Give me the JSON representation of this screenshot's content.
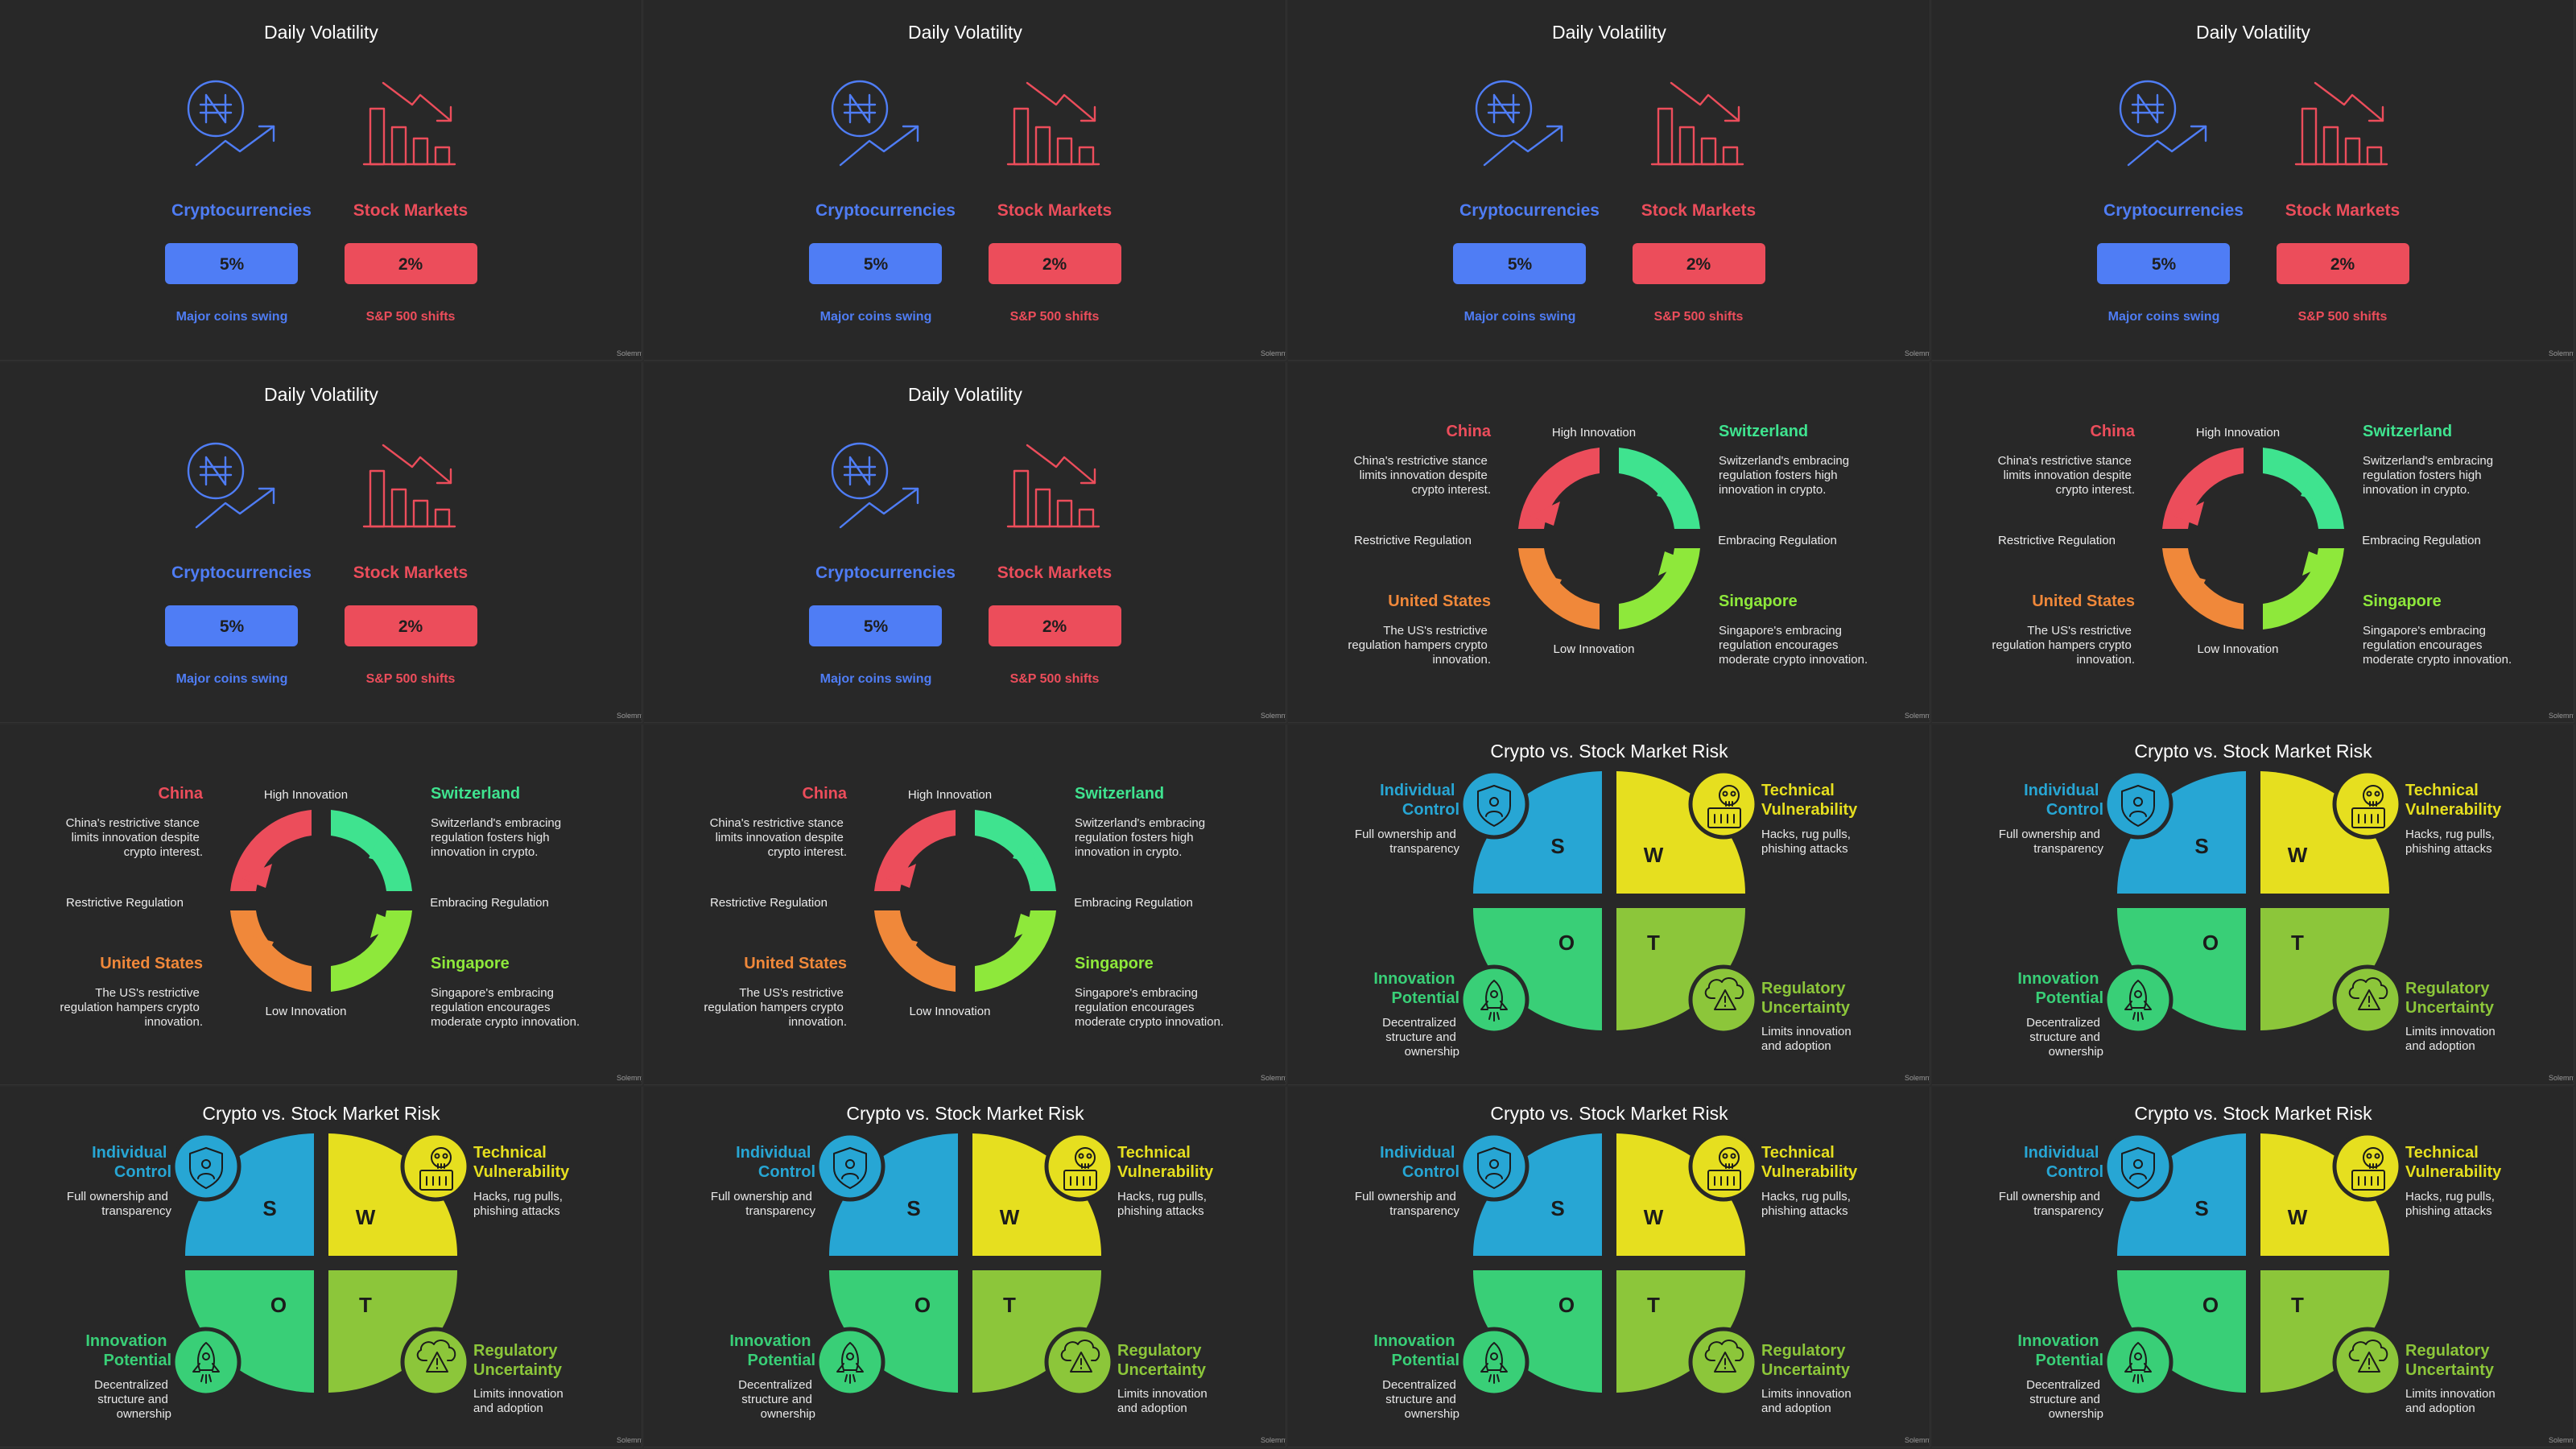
{
  "brand": "Solemny",
  "colors": {
    "background": "#282828",
    "crypto_blue": "#4f7df5",
    "stock_red": "#ec4d5b",
    "china_red": "#ec4d5b",
    "switzerland_green": "#3fe38f",
    "us_orange": "#f0883a",
    "singapore_lime": "#8ee83b",
    "swot_s": "#27a6d4",
    "swot_w": "#e6df1f",
    "swot_o": "#39cf77",
    "swot_t": "#8cc63a"
  },
  "volatility": {
    "title": "Daily Volatility",
    "crypto": {
      "label": "Cryptocurrencies",
      "value": "5%",
      "caption": "Major coins swing",
      "icon": "naira-trend-up-icon"
    },
    "stocks": {
      "label": "Stock Markets",
      "value": "2%",
      "caption": "S&P 500 shifts",
      "icon": "bar-chart-down-icon"
    }
  },
  "regulation": {
    "top_axis": "High Innovation",
    "bottom_axis": "Low Innovation",
    "left_axis": "Restrictive Regulation",
    "right_axis": "Embracing Regulation",
    "china": {
      "name": "China",
      "text": [
        "China's restrictive stance",
        "limits innovation despite",
        "crypto interest."
      ]
    },
    "switzerland": {
      "name": "Switzerland",
      "text": [
        "Switzerland's embracing",
        "regulation fosters high",
        "innovation in crypto."
      ]
    },
    "us": {
      "name": "United States",
      "text": [
        "The US's restrictive",
        "regulation hampers crypto",
        "innovation."
      ]
    },
    "singapore": {
      "name": "Singapore",
      "text": [
        "Singapore's embracing",
        "regulation encourages",
        "moderate crypto innovation."
      ]
    }
  },
  "swot": {
    "title": "Crypto vs. Stock Market Risk",
    "s": {
      "letter": "S",
      "head": [
        "Individual",
        "Control"
      ],
      "text": [
        "Full ownership and",
        "transparency"
      ],
      "icon": "shield-person-icon"
    },
    "w": {
      "letter": "W",
      "head": [
        "Technical",
        "Vulnerability"
      ],
      "text": [
        "Hacks, rug pulls,",
        "phishing attacks"
      ],
      "icon": "skull-computer-icon"
    },
    "o": {
      "letter": "O",
      "head": [
        "Innovation",
        "Potential"
      ],
      "text": [
        "Decentralized",
        "structure and",
        "ownership"
      ],
      "icon": "rocket-icon"
    },
    "t": {
      "letter": "T",
      "head": [
        "Regulatory",
        "Uncertainty"
      ],
      "text": [
        "Limits innovation",
        "and adoption"
      ],
      "icon": "cloud-warning-icon"
    }
  },
  "tiles": [
    {
      "type": "volatility"
    },
    {
      "type": "volatility"
    },
    {
      "type": "volatility"
    },
    {
      "type": "volatility"
    },
    {
      "type": "volatility"
    },
    {
      "type": "volatility"
    },
    {
      "type": "regulation"
    },
    {
      "type": "regulation"
    },
    {
      "type": "regulation"
    },
    {
      "type": "regulation"
    },
    {
      "type": "swot"
    },
    {
      "type": "swot"
    },
    {
      "type": "swot"
    },
    {
      "type": "swot"
    },
    {
      "type": "swot"
    },
    {
      "type": "swot"
    }
  ]
}
